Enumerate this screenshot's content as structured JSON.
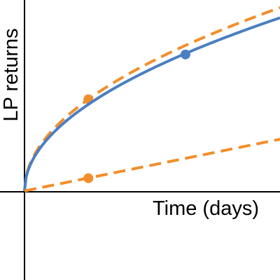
{
  "chart_data": {
    "type": "line",
    "xlabel": "Time (days)",
    "ylabel": "LP returns",
    "xlim": [
      0,
      100
    ],
    "ylim": [
      -35,
      75
    ],
    "grid": false,
    "legend": "none",
    "series": [
      {
        "key": "upper-dashed",
        "style": "dashed",
        "color": "#f28e2b",
        "curve": "sqrt",
        "end": [
          100,
          72
        ],
        "marker": [
          25,
          36
        ]
      },
      {
        "key": "solid",
        "style": "solid",
        "color": "#4a7fc1",
        "curve": "sqrt",
        "end": [
          100,
          68
        ],
        "marker": [
          63,
          53.6
        ]
      },
      {
        "key": "lower-dashed",
        "style": "dashed",
        "color": "#f28e2b",
        "curve": "linear",
        "end": [
          100,
          20.3
        ],
        "marker": [
          25,
          5
        ]
      }
    ]
  }
}
